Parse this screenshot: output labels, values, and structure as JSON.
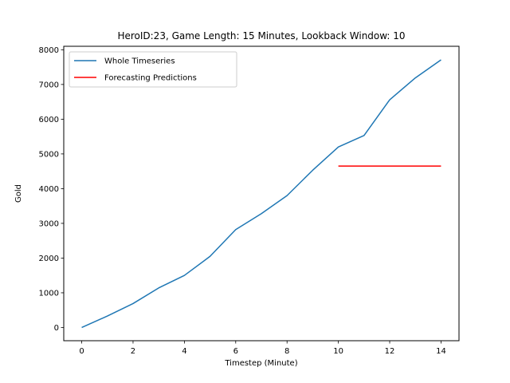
{
  "chart_data": {
    "type": "line",
    "title": "HeroID:23, Game Length: 15 Minutes, Lookback Window: 10",
    "xlabel": "Timestep (Minute)",
    "ylabel": "Gold",
    "xlim": [
      -0.7,
      14.7
    ],
    "ylim": [
      -380,
      8100
    ],
    "xticks": [
      0,
      2,
      4,
      6,
      8,
      10,
      12,
      14
    ],
    "yticks": [
      0,
      1000,
      2000,
      3000,
      4000,
      5000,
      6000,
      7000,
      8000
    ],
    "grid": false,
    "legend_position": "top-left",
    "series": [
      {
        "name": "Whole Timeseries",
        "color": "#1f77b4",
        "x": [
          0,
          1,
          2,
          3,
          4,
          5,
          6,
          7,
          8,
          9,
          10,
          11,
          12,
          13,
          14
        ],
        "y": [
          0,
          330,
          690,
          1140,
          1500,
          2050,
          2820,
          3280,
          3800,
          4530,
          5200,
          5530,
          6560,
          7190,
          7710
        ]
      },
      {
        "name": "Forecasting Predictions",
        "color": "#ff0000",
        "x": [
          10,
          11,
          12,
          13,
          14
        ],
        "y": [
          4650,
          4650,
          4650,
          4650,
          4650
        ]
      }
    ]
  }
}
